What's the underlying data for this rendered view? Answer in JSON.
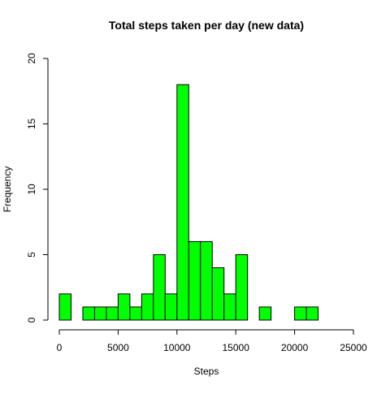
{
  "chart_data": {
    "type": "bar",
    "subtype": "histogram",
    "title": "Total steps taken per day (new data)",
    "xlabel": "Steps",
    "ylabel": "Frequency",
    "xlim": [
      0,
      25000
    ],
    "ylim": [
      0,
      20
    ],
    "bin_width": 1000,
    "bins": [
      {
        "x0": 0,
        "x1": 1000,
        "count": 2
      },
      {
        "x0": 1000,
        "x1": 2000,
        "count": 0
      },
      {
        "x0": 2000,
        "x1": 3000,
        "count": 1
      },
      {
        "x0": 3000,
        "x1": 4000,
        "count": 1
      },
      {
        "x0": 4000,
        "x1": 5000,
        "count": 1
      },
      {
        "x0": 5000,
        "x1": 6000,
        "count": 2
      },
      {
        "x0": 6000,
        "x1": 7000,
        "count": 1
      },
      {
        "x0": 7000,
        "x1": 8000,
        "count": 2
      },
      {
        "x0": 8000,
        "x1": 9000,
        "count": 5
      },
      {
        "x0": 9000,
        "x1": 10000,
        "count": 2
      },
      {
        "x0": 10000,
        "x1": 11000,
        "count": 18
      },
      {
        "x0": 11000,
        "x1": 12000,
        "count": 6
      },
      {
        "x0": 12000,
        "x1": 13000,
        "count": 6
      },
      {
        "x0": 13000,
        "x1": 14000,
        "count": 4
      },
      {
        "x0": 14000,
        "x1": 15000,
        "count": 2
      },
      {
        "x0": 15000,
        "x1": 16000,
        "count": 5
      },
      {
        "x0": 16000,
        "x1": 17000,
        "count": 0
      },
      {
        "x0": 17000,
        "x1": 18000,
        "count": 1
      },
      {
        "x0": 18000,
        "x1": 19000,
        "count": 0
      },
      {
        "x0": 19000,
        "x1": 20000,
        "count": 0
      },
      {
        "x0": 20000,
        "x1": 21000,
        "count": 1
      },
      {
        "x0": 21000,
        "x1": 22000,
        "count": 1
      },
      {
        "x0": 22000,
        "x1": 23000,
        "count": 0
      },
      {
        "x0": 23000,
        "x1": 24000,
        "count": 0
      },
      {
        "x0": 24000,
        "x1": 25000,
        "count": 0
      }
    ],
    "x_ticks": [
      0,
      5000,
      10000,
      15000,
      20000,
      25000
    ],
    "x_tick_labels": [
      "0",
      "5000",
      "10000",
      "15000",
      "20000",
      "25000"
    ],
    "y_ticks": [
      0,
      5,
      10,
      15,
      20
    ],
    "y_tick_labels": [
      "0",
      "5",
      "10",
      "15",
      "20"
    ],
    "bar_color": "#00ff00",
    "bar_border_color": "#000000",
    "grid": false,
    "legend": "none"
  }
}
